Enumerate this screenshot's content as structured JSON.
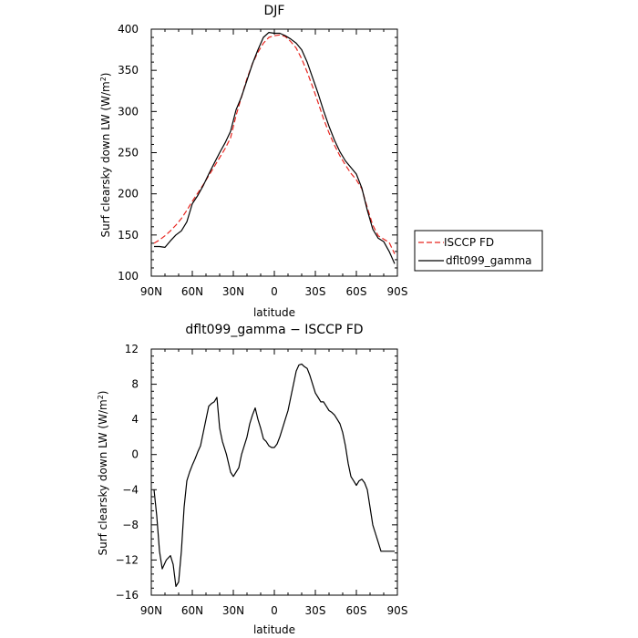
{
  "chart_data": [
    {
      "type": "line",
      "title": "DJF",
      "xlabel": "latitude",
      "ylabel": "Surf clearsky down LW (W/m",
      "ylabel_sup": "2",
      "ylabel_close": ")",
      "xlim": [
        -90,
        90
      ],
      "ylim": [
        100,
        400
      ],
      "x_ticks": [
        -90,
        -60,
        -30,
        0,
        30,
        60,
        90
      ],
      "x_tick_labels": [
        "90N",
        "60N",
        "30N",
        "0",
        "30S",
        "60S",
        "90S"
      ],
      "y_ticks": [
        100,
        150,
        200,
        250,
        300,
        350,
        400
      ],
      "y_tick_labels": [
        "100",
        "150",
        "200",
        "250",
        "300",
        "350",
        "400"
      ],
      "legend_position": "right",
      "series": [
        {
          "name": "ISCCP FD",
          "color": "#e8251f",
          "dash": "dashed",
          "x": [
            -88,
            -84,
            -80,
            -76,
            -72,
            -68,
            -64,
            -60,
            -56,
            -52,
            -48,
            -44,
            -40,
            -36,
            -32,
            -28,
            -24,
            -20,
            -16,
            -12,
            -8,
            -4,
            0,
            4,
            8,
            12,
            16,
            20,
            24,
            28,
            32,
            36,
            40,
            44,
            48,
            52,
            56,
            60,
            64,
            68,
            72,
            76,
            80,
            84,
            88
          ],
          "y": [
            140,
            144,
            149,
            155,
            162,
            170,
            180,
            191,
            201,
            211,
            222,
            233,
            244,
            255,
            268,
            295,
            318,
            340,
            358,
            372,
            383,
            390,
            392,
            393,
            391,
            385,
            377,
            364,
            348,
            330,
            311,
            291,
            274,
            259,
            246,
            235,
            225,
            217,
            206,
            183,
            162,
            149,
            145,
            141,
            127
          ]
        },
        {
          "name": "dflt099_gamma",
          "color": "#000000",
          "dash": "solid",
          "x": [
            -88,
            -84,
            -80,
            -76,
            -72,
            -68,
            -64,
            -60,
            -56,
            -52,
            -48,
            -44,
            -40,
            -36,
            -32,
            -28,
            -24,
            -20,
            -16,
            -12,
            -8,
            -4,
            0,
            4,
            8,
            12,
            16,
            20,
            24,
            28,
            32,
            36,
            40,
            44,
            48,
            52,
            56,
            60,
            64,
            68,
            72,
            76,
            80,
            84,
            88
          ],
          "y": [
            136,
            136,
            135,
            143,
            150,
            155,
            166,
            188,
            198,
            210,
            224,
            237,
            250,
            262,
            276,
            302,
            318,
            338,
            358,
            375,
            390,
            396,
            395,
            395,
            392,
            388,
            383,
            375,
            360,
            341,
            322,
            301,
            282,
            265,
            251,
            240,
            232,
            224,
            207,
            180,
            157,
            146,
            142,
            130,
            115
          ]
        }
      ]
    },
    {
      "type": "line",
      "title": "dflt099_gamma − ISCCP FD",
      "xlabel": "latitude",
      "ylabel": "Surf clearsky down LW (W/m",
      "ylabel_sup": "2",
      "ylabel_close": ")",
      "xlim": [
        -90,
        90
      ],
      "ylim": [
        -16,
        12
      ],
      "x_ticks": [
        -90,
        -60,
        -30,
        0,
        30,
        60,
        90
      ],
      "x_tick_labels": [
        "90N",
        "60N",
        "30N",
        "0",
        "30S",
        "60S",
        "90S"
      ],
      "y_ticks": [
        -16,
        -12,
        -8,
        -4,
        0,
        4,
        8,
        12
      ],
      "y_tick_labels": [
        "−16",
        "−12",
        "−8",
        "−4",
        "0",
        "4",
        "8",
        "12"
      ],
      "series": [
        {
          "name": "",
          "color": "#000000",
          "dash": "solid",
          "x": [
            -88,
            -86,
            -84,
            -82,
            -79,
            -76,
            -74,
            -72,
            -70,
            -68,
            -66,
            -64,
            -62,
            -60,
            -58,
            -56,
            -54,
            -52,
            -50,
            -48,
            -46,
            -44,
            -42,
            -40,
            -38,
            -35,
            -32,
            -30,
            -28,
            -26,
            -24,
            -22,
            -20,
            -18,
            -16,
            -14,
            -12,
            -10,
            -8,
            -6,
            -4,
            -2,
            0,
            2,
            4,
            6,
            8,
            10,
            12,
            14,
            16,
            18,
            20,
            22,
            24,
            26,
            28,
            30,
            32,
            34,
            36,
            38,
            40,
            42,
            44,
            46,
            48,
            50,
            52,
            54,
            56,
            58,
            60,
            62,
            64,
            66,
            68,
            70,
            72,
            74,
            76,
            78,
            80,
            82,
            84,
            86,
            88
          ],
          "y": [
            -4,
            -7,
            -11,
            -13,
            -12,
            -11.5,
            -12.5,
            -15,
            -14.5,
            -11,
            -6,
            -3,
            -2,
            -1.2,
            -0.5,
            0.3,
            1,
            2.5,
            4,
            5.5,
            5.8,
            6,
            6.5,
            3,
            1.5,
            0,
            -2,
            -2.5,
            -2,
            -1.5,
            0,
            1,
            2,
            3.5,
            4.5,
            5.3,
            4,
            3,
            1.8,
            1.5,
            1,
            0.8,
            0.8,
            1.2,
            2,
            3,
            4,
            5,
            6.5,
            8,
            9.5,
            10.2,
            10.3,
            10,
            9.8,
            9,
            8,
            7,
            6.5,
            6,
            6,
            5.5,
            5,
            4.8,
            4.5,
            4,
            3.5,
            2.5,
            1,
            -1,
            -2.5,
            -3,
            -3.5,
            -3,
            -2.8,
            -3.2,
            -4,
            -6,
            -8,
            -9,
            -10,
            -11,
            -11,
            -11,
            -11,
            -11,
            -11
          ]
        }
      ]
    }
  ]
}
